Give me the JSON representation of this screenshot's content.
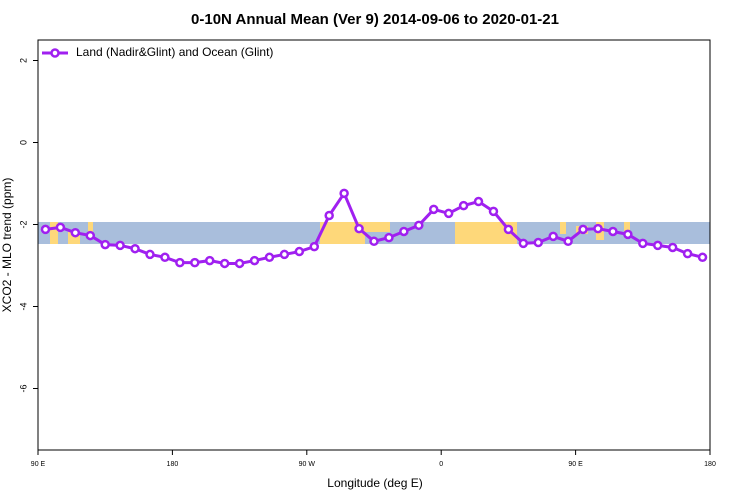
{
  "chart_data": {
    "type": "line",
    "title": "0-10N Annual Mean (Ver 9)   2014-09-06 to 2020-01-21",
    "xlabel": "Longitude (deg E)",
    "ylabel": "XCO2 - MLO trend (ppm)",
    "x": [
      95,
      105,
      115,
      125,
      135,
      145,
      155,
      165,
      175,
      185,
      195,
      205,
      215,
      225,
      235,
      245,
      255,
      265,
      275,
      285,
      295,
      305,
      315,
      325,
      335,
      345,
      355,
      365,
      375,
      385,
      395,
      405,
      415,
      425,
      435,
      445,
      455,
      465,
      475,
      485,
      495,
      505,
      515,
      525,
      535
    ],
    "series": [
      {
        "name": "Land (Nadir&Glint) and Ocean (Glint)",
        "color": "#a020f0",
        "values": [
          -2.12,
          -2.07,
          -2.2,
          -2.27,
          -2.49,
          -2.51,
          -2.59,
          -2.73,
          -2.8,
          -2.93,
          -2.93,
          -2.88,
          -2.95,
          -2.95,
          -2.88,
          -2.8,
          -2.73,
          -2.66,
          -2.54,
          -1.78,
          -1.24,
          -2.1,
          -2.41,
          -2.32,
          -2.17,
          -2.02,
          -1.63,
          -1.73,
          -1.54,
          -1.44,
          -1.68,
          -2.12,
          -2.46,
          -2.44,
          -2.29,
          -2.41,
          -2.12,
          -2.1,
          -2.17,
          -2.24,
          -2.46,
          -2.51,
          -2.56,
          -2.71,
          -2.8
        ]
      }
    ],
    "xlim": [
      90,
      540
    ],
    "xticks": [
      {
        "value": 90,
        "label": "90 E"
      },
      {
        "value": 180,
        "label": "180"
      },
      {
        "value": 270,
        "label": "90 W"
      },
      {
        "value": 360,
        "label": "0"
      },
      {
        "value": 450,
        "label": "90 E"
      },
      {
        "value": 540,
        "label": "180"
      }
    ],
    "ylim": [
      -7.5,
      2.5
    ],
    "yticks": [
      -6,
      -4,
      -2,
      0,
      2
    ],
    "legend": "top-left"
  }
}
